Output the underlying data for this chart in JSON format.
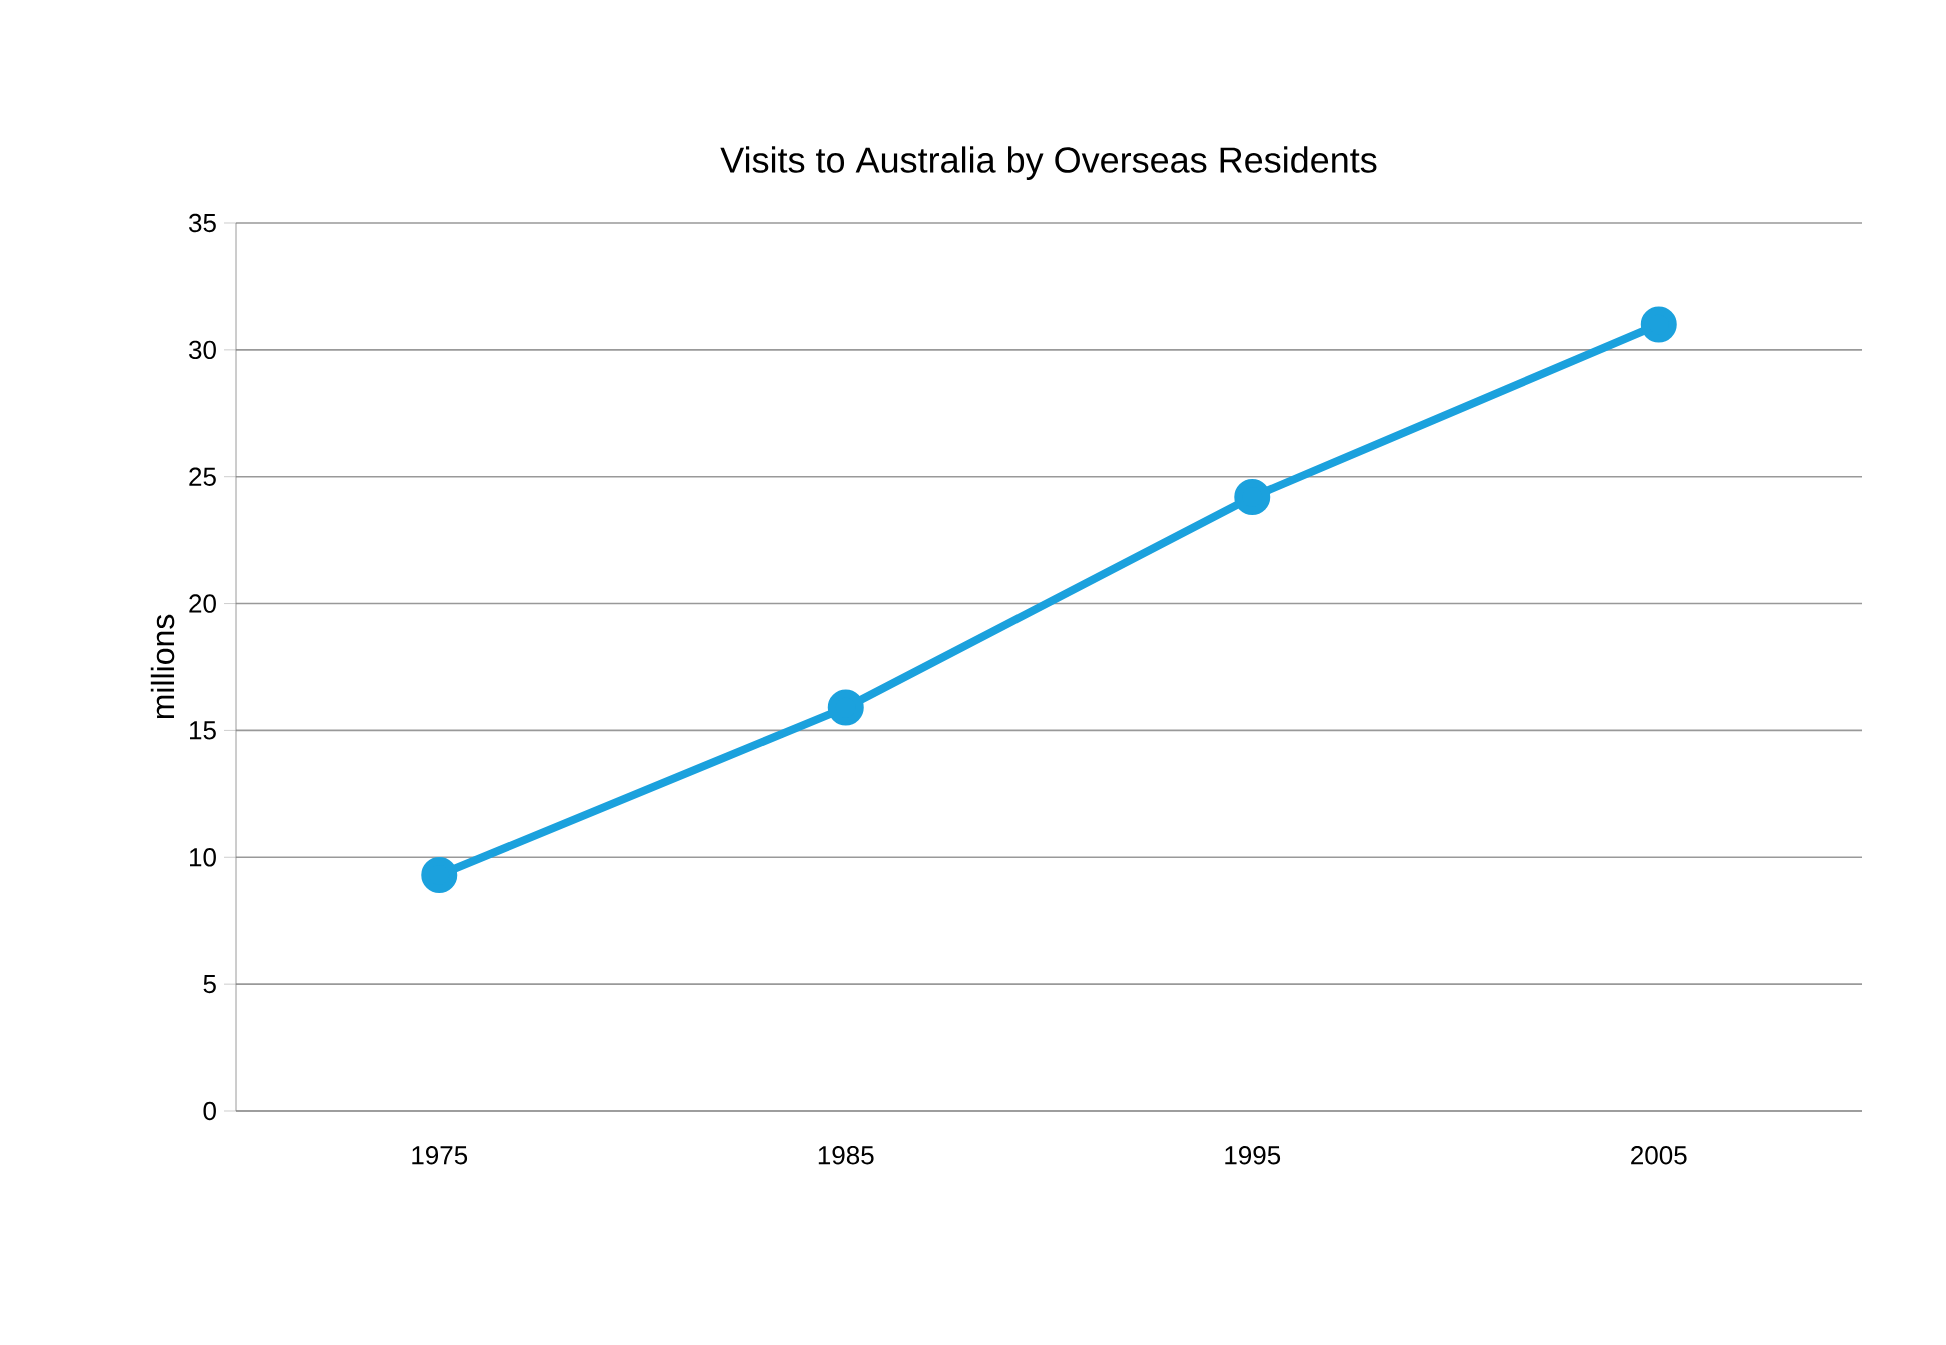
{
  "chart_data": {
    "type": "line",
    "title": "Visits to Australia by Overseas Residents",
    "ylabel": "millions",
    "categories": [
      "1975",
      "1985",
      "1995",
      "2005"
    ],
    "values": [
      9.3,
      15.9,
      24.2,
      31
    ],
    "color": "#1ba1dd",
    "marker": "circle",
    "line_style": "solid",
    "ylim": [
      0,
      35
    ],
    "yticks": [
      0,
      5,
      10,
      15,
      20,
      25,
      30,
      35
    ],
    "grid": "y"
  }
}
